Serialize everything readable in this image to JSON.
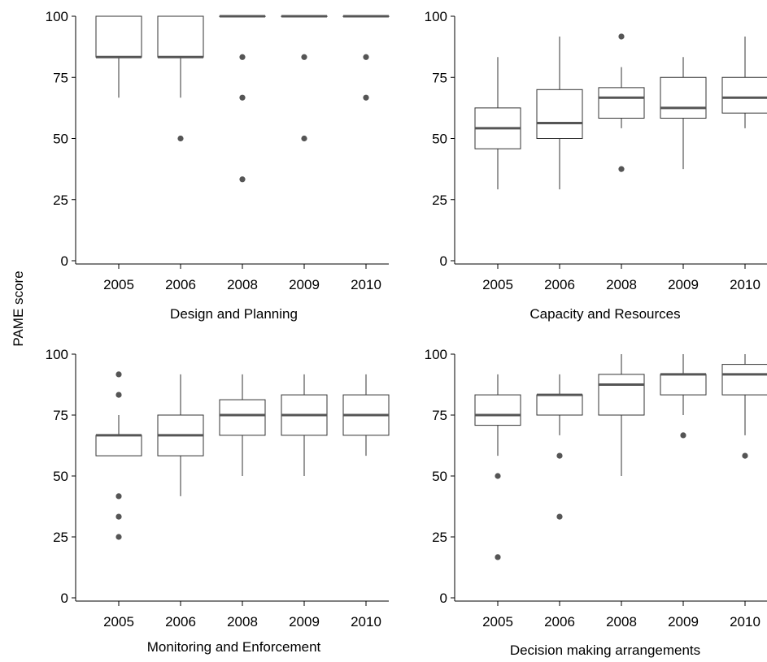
{
  "figure": {
    "ylabel": "PAME score"
  },
  "style": {
    "box_stroke": "#333333",
    "median_color": "#555555",
    "outlier_color": "#555555",
    "axis_color": "#000000",
    "background": "#ffffff"
  },
  "chart_data": [
    {
      "type": "box",
      "title": "",
      "xlabel": "Design and Planning",
      "ylabel": "PAME score",
      "ylim": [
        0,
        100
      ],
      "yticks": [
        0,
        25,
        50,
        75,
        100
      ],
      "grid": false,
      "categories": [
        "2005",
        "2006",
        "2008",
        "2009",
        "2010"
      ],
      "boxes": [
        {
          "category": "2005",
          "whisker_low": 66.7,
          "q1": 83.3,
          "median": 83.3,
          "q3": 100,
          "whisker_high": 100,
          "outliers": []
        },
        {
          "category": "2006",
          "whisker_low": 66.7,
          "q1": 83.3,
          "median": 83.3,
          "q3": 100,
          "whisker_high": 100,
          "outliers": [
            50
          ]
        },
        {
          "category": "2008",
          "whisker_low": 100,
          "q1": 100,
          "median": 100,
          "q3": 100,
          "whisker_high": 100,
          "outliers": [
            83.3,
            66.7,
            33.3
          ]
        },
        {
          "category": "2009",
          "whisker_low": 100,
          "q1": 100,
          "median": 100,
          "q3": 100,
          "whisker_high": 100,
          "outliers": [
            83.3,
            50
          ]
        },
        {
          "category": "2010",
          "whisker_low": 100,
          "q1": 100,
          "median": 100,
          "q3": 100,
          "whisker_high": 100,
          "outliers": [
            83.3,
            66.7
          ]
        }
      ]
    },
    {
      "type": "box",
      "title": "",
      "xlabel": "Capacity and Resources",
      "ylabel": "",
      "ylim": [
        0,
        100
      ],
      "yticks": [
        0,
        25,
        50,
        75,
        100
      ],
      "grid": false,
      "categories": [
        "2005",
        "2006",
        "2008",
        "2009",
        "2010"
      ],
      "boxes": [
        {
          "category": "2005",
          "whisker_low": 29.2,
          "q1": 45.8,
          "median": 54.2,
          "q3": 62.5,
          "whisker_high": 83.3,
          "outliers": []
        },
        {
          "category": "2006",
          "whisker_low": 29.2,
          "q1": 50,
          "median": 56.3,
          "q3": 70,
          "whisker_high": 91.7,
          "outliers": []
        },
        {
          "category": "2008",
          "whisker_low": 54.2,
          "q1": 58.3,
          "median": 66.7,
          "q3": 70.8,
          "whisker_high": 79.2,
          "outliers": [
            91.7,
            37.5
          ]
        },
        {
          "category": "2009",
          "whisker_low": 37.5,
          "q1": 58.3,
          "median": 62.5,
          "q3": 75,
          "whisker_high": 83.3,
          "outliers": []
        },
        {
          "category": "2010",
          "whisker_low": 54.2,
          "q1": 60.4,
          "median": 66.7,
          "q3": 75,
          "whisker_high": 91.7,
          "outliers": []
        }
      ]
    },
    {
      "type": "box",
      "title": "",
      "xlabel": "Monitoring and Enforcement",
      "ylabel": "",
      "ylim": [
        0,
        100
      ],
      "yticks": [
        0,
        25,
        50,
        75,
        100
      ],
      "grid": false,
      "categories": [
        "2005",
        "2006",
        "2008",
        "2009",
        "2010"
      ],
      "boxes": [
        {
          "category": "2005",
          "whisker_low": 58.3,
          "q1": 58.3,
          "median": 66.7,
          "q3": 66.7,
          "whisker_high": 75,
          "outliers": [
            91.7,
            83.3,
            41.7,
            33.3,
            25
          ]
        },
        {
          "category": "2006",
          "whisker_low": 41.7,
          "q1": 58.3,
          "median": 66.7,
          "q3": 75,
          "whisker_high": 91.7,
          "outliers": []
        },
        {
          "category": "2008",
          "whisker_low": 50,
          "q1": 66.7,
          "median": 75,
          "q3": 81.3,
          "whisker_high": 91.7,
          "outliers": []
        },
        {
          "category": "2009",
          "whisker_low": 50,
          "q1": 66.7,
          "median": 75,
          "q3": 83.3,
          "whisker_high": 91.7,
          "outliers": []
        },
        {
          "category": "2010",
          "whisker_low": 58.3,
          "q1": 66.7,
          "median": 75,
          "q3": 83.3,
          "whisker_high": 91.7,
          "outliers": []
        }
      ]
    },
    {
      "type": "box",
      "title": "",
      "xlabel": "Decision making arrangements",
      "ylabel": "",
      "ylim": [
        0,
        100
      ],
      "yticks": [
        0,
        25,
        50,
        75,
        100
      ],
      "grid": false,
      "categories": [
        "2005",
        "2006",
        "2008",
        "2009",
        "2010"
      ],
      "boxes": [
        {
          "category": "2005",
          "whisker_low": 58.3,
          "q1": 70.8,
          "median": 75,
          "q3": 83.3,
          "whisker_high": 91.7,
          "outliers": [
            50,
            16.7
          ]
        },
        {
          "category": "2006",
          "whisker_low": 66.7,
          "q1": 75,
          "median": 83.3,
          "q3": 83.3,
          "whisker_high": 91.7,
          "outliers": [
            58.3,
            33.3
          ]
        },
        {
          "category": "2008",
          "whisker_low": 50,
          "q1": 75,
          "median": 87.5,
          "q3": 91.7,
          "whisker_high": 100,
          "outliers": []
        },
        {
          "category": "2009",
          "whisker_low": 75,
          "q1": 83.3,
          "median": 91.7,
          "q3": 91.7,
          "whisker_high": 100,
          "outliers": [
            66.7
          ]
        },
        {
          "category": "2010",
          "whisker_low": 66.7,
          "q1": 83.3,
          "median": 91.7,
          "q3": 95.8,
          "whisker_high": 100,
          "outliers": [
            58.3
          ]
        }
      ]
    }
  ]
}
